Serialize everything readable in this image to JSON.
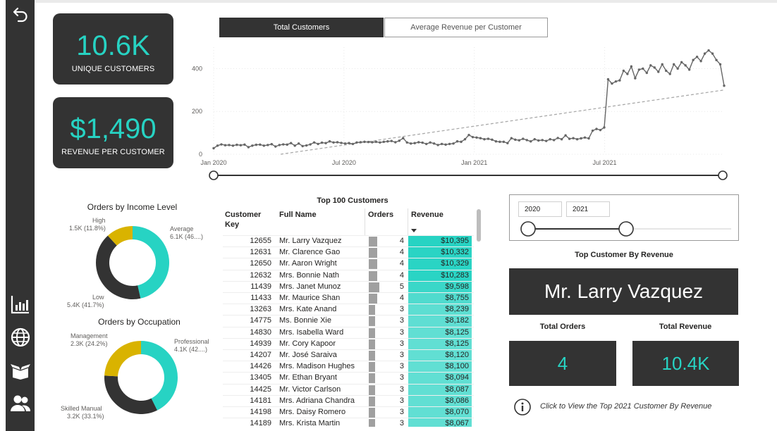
{
  "kpis": {
    "unique_customers": {
      "value": "10.6K",
      "label": "UNIQUE CUSTOMERS"
    },
    "revenue_per_customer": {
      "value": "$1,490",
      "label": "REVENUE PER CUSTOMER"
    }
  },
  "tabs": [
    {
      "label": "Total Customers",
      "active": true
    },
    {
      "label": "Average Revenue per Customer",
      "active": false
    }
  ],
  "colors": {
    "teal": "#27d3c3",
    "dark": "#333333",
    "gold": "#d9b300",
    "line": "#666666"
  },
  "line_chart": {
    "chart_data": {
      "type": "line",
      "x_start": "2020-01",
      "x_ticks": [
        "Jan 2020",
        "Jul 2020",
        "Jan 2021",
        "Jul 2021"
      ],
      "y_ticks": [
        "0",
        "200",
        "400"
      ],
      "ylim": [
        0,
        500
      ],
      "series": [
        {
          "values": [
            28,
            40,
            46,
            42,
            43,
            40,
            44,
            42,
            45,
            33,
            40,
            44,
            45,
            40,
            43,
            47,
            36,
            43,
            46,
            45,
            52,
            40,
            50,
            38,
            41,
            46,
            55,
            48,
            54,
            52,
            60,
            55,
            56,
            53,
            50,
            52,
            48,
            55,
            56,
            58,
            57,
            56,
            58,
            55,
            58,
            60,
            62,
            56,
            63,
            75,
            55,
            50,
            52,
            56,
            54,
            48,
            55,
            50,
            43,
            48,
            45,
            48,
            50,
            60,
            58,
            70,
            90,
            80,
            78,
            75,
            70,
            72,
            68,
            60,
            58,
            58,
            52,
            75,
            68,
            65,
            72,
            66,
            60,
            70,
            64,
            66,
            62,
            70,
            66,
            76,
            70,
            88,
            72,
            75,
            70,
            74,
            78,
            74,
            110,
            118,
            113,
            125,
            350,
            330,
            340,
            345,
            390,
            375,
            410,
            355,
            395,
            400,
            380,
            415,
            405,
            385,
            420,
            390,
            375,
            420,
            400,
            430,
            415,
            395,
            440,
            455,
            435,
            470,
            485,
            470,
            440,
            420,
            320
          ],
          "trend": [
            0,
            300
          ]
        }
      ]
    }
  },
  "income_chart": {
    "title": "Orders by Income Level",
    "slices": [
      {
        "name": "Average",
        "display": "6.1K (46....)",
        "value": 46.5,
        "color": "#27d3c3"
      },
      {
        "name": "Low",
        "display": "5.4K (41.7%)",
        "value": 41.7,
        "color": "#333333"
      },
      {
        "name": "High",
        "display": "1.5K (11.8%)",
        "value": 11.8,
        "color": "#d9b300"
      }
    ]
  },
  "occupation_chart": {
    "title": "Orders by Occupation",
    "slices": [
      {
        "name": "Professional",
        "display": "4.1K (42....)",
        "value": 42.7,
        "color": "#27d3c3"
      },
      {
        "name": "Skilled Manual",
        "display": "3.2K (33.1%)",
        "value": 33.1,
        "color": "#333333"
      },
      {
        "name": "Management",
        "display": "2.3K (24.2%)",
        "value": 24.2,
        "color": "#d9b300"
      }
    ]
  },
  "table": {
    "title": "Top 100 Customers",
    "headers": {
      "key_line1": "Customer",
      "key_line2": "Key",
      "name": "Full Name",
      "orders": "Orders",
      "revenue": "Revenue"
    },
    "max_orders": 5,
    "max_revenue": 10395,
    "rows": [
      {
        "key": "12655",
        "name": "Mr. Larry Vazquez",
        "orders": 4,
        "revenue": "$10,395",
        "rev_num": 10395
      },
      {
        "key": "12631",
        "name": "Mr. Clarence Gao",
        "orders": 4,
        "revenue": "$10,332",
        "rev_num": 10332
      },
      {
        "key": "12650",
        "name": "Mr. Aaron Wright",
        "orders": 4,
        "revenue": "$10,329",
        "rev_num": 10329
      },
      {
        "key": "12632",
        "name": "Mrs. Bonnie Nath",
        "orders": 4,
        "revenue": "$10,283",
        "rev_num": 10283
      },
      {
        "key": "11439",
        "name": "Mrs. Janet Munoz",
        "orders": 5,
        "revenue": "$9,598",
        "rev_num": 9598
      },
      {
        "key": "11433",
        "name": "Mr. Maurice Shan",
        "orders": 4,
        "revenue": "$8,755",
        "rev_num": 8755
      },
      {
        "key": "13263",
        "name": "Mrs. Kate Anand",
        "orders": 3,
        "revenue": "$8,239",
        "rev_num": 8239
      },
      {
        "key": "14775",
        "name": "Ms. Bonnie Xie",
        "orders": 3,
        "revenue": "$8,182",
        "rev_num": 8182
      },
      {
        "key": "14830",
        "name": "Mrs. Isabella Ward",
        "orders": 3,
        "revenue": "$8,125",
        "rev_num": 8125
      },
      {
        "key": "14939",
        "name": "Mr. Cory Kapoor",
        "orders": 3,
        "revenue": "$8,125",
        "rev_num": 8125
      },
      {
        "key": "14207",
        "name": "Mr. José Saraiva",
        "orders": 3,
        "revenue": "$8,120",
        "rev_num": 8120
      },
      {
        "key": "14426",
        "name": "Mrs. Madison Hughes",
        "orders": 3,
        "revenue": "$8,100",
        "rev_num": 8100
      },
      {
        "key": "13405",
        "name": "Mr. Ethan Bryant",
        "orders": 3,
        "revenue": "$8,094",
        "rev_num": 8094
      },
      {
        "key": "14425",
        "name": "Mr. Victor Carlson",
        "orders": 3,
        "revenue": "$8,087",
        "rev_num": 8087
      },
      {
        "key": "14181",
        "name": "Mrs. Adriana Chandra",
        "orders": 3,
        "revenue": "$8,086",
        "rev_num": 8086
      },
      {
        "key": "14198",
        "name": "Mrs. Daisy Romero",
        "orders": 3,
        "revenue": "$8,070",
        "rev_num": 8070
      },
      {
        "key": "14189",
        "name": "Mrs. Krista Martin",
        "orders": 3,
        "revenue": "$8,067",
        "rev_num": 8067
      }
    ]
  },
  "year_slicer": {
    "from": "2020",
    "to": "2021"
  },
  "top_customer": {
    "heading": "Top Customer By Revenue",
    "name": "Mr. Larry Vazquez",
    "orders_heading": "Total Orders",
    "orders_value": "4",
    "revenue_heading": "Total Revenue",
    "revenue_value": "10.4K"
  },
  "info": {
    "text": "Click to View the Top 2021 Customer By Revenue",
    "icon": "info-icon"
  },
  "nav_icons": [
    "back-icon",
    "bar-chart-icon",
    "globe-icon",
    "box-icon",
    "users-icon"
  ]
}
